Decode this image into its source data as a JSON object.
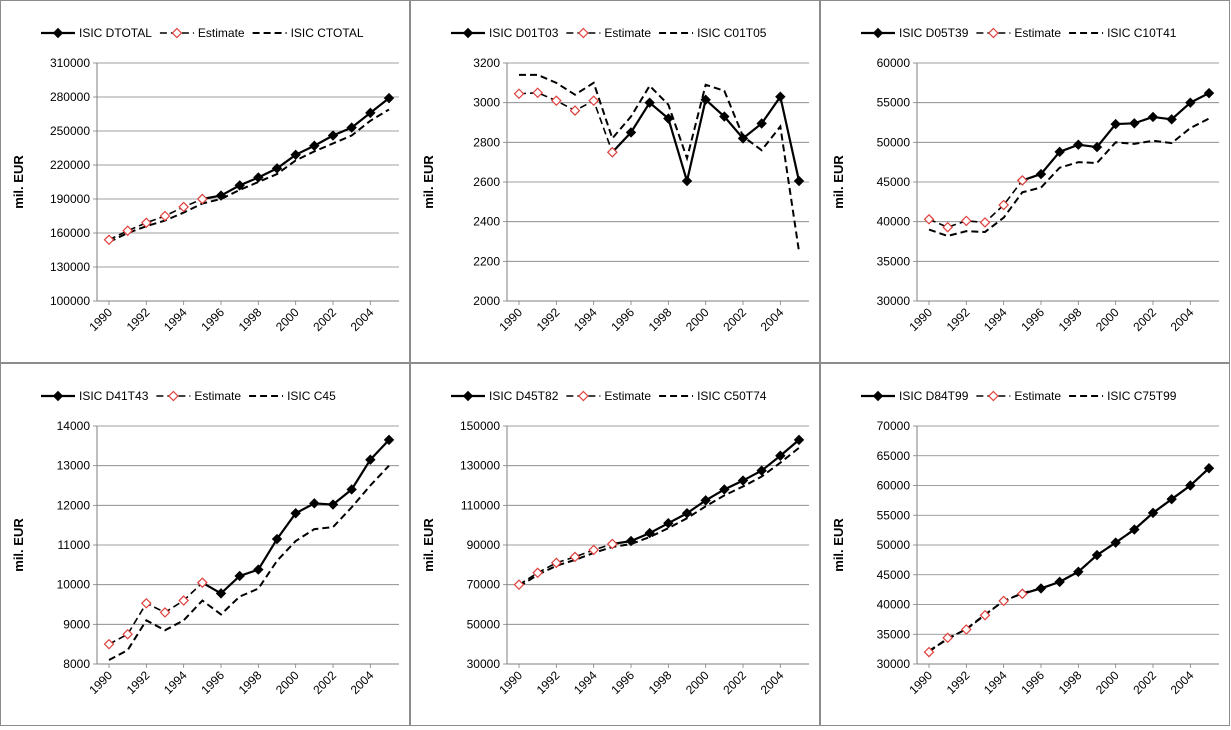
{
  "ylabel": "mil. EUR",
  "estimate_label": "Estimate",
  "colors": {
    "main": "#000000",
    "estimate_marker": "#e0403c",
    "grid": "#7f7f7f"
  },
  "chart_data": [
    {
      "type": "line",
      "title": "",
      "xlabel": "",
      "ylabel": "mil. EUR",
      "ylim": [
        100000,
        310000
      ],
      "yticks": [
        100000,
        130000,
        160000,
        190000,
        220000,
        250000,
        280000,
        310000
      ],
      "x": [
        1990,
        1991,
        1992,
        1993,
        1994,
        1995,
        1996,
        1997,
        1998,
        1999,
        2000,
        2001,
        2002,
        2003,
        2004,
        2005
      ],
      "xticks": [
        "1990",
        "1992",
        "1994",
        "1996",
        "1998",
        "2000",
        "2002",
        "2004"
      ],
      "series": [
        {
          "name": "ISIC DTOTAL",
          "style": "solid-diamond",
          "values": [
            null,
            null,
            null,
            null,
            null,
            190000,
            193000,
            202000,
            209000,
            217000,
            229000,
            237000,
            246000,
            253000,
            266000,
            279000
          ]
        },
        {
          "name": "Estimate",
          "style": "open-diamond-dashed",
          "values": [
            154000,
            162000,
            169000,
            175000,
            183000,
            190000,
            null,
            null,
            null,
            null,
            null,
            null,
            null,
            null,
            null,
            null
          ]
        },
        {
          "name": "ISIC CTOTAL",
          "style": "dashed",
          "values": [
            152000,
            160000,
            166000,
            171000,
            178000,
            186000,
            190000,
            198000,
            205000,
            212000,
            224000,
            232000,
            239000,
            246000,
            259000,
            269000
          ]
        }
      ]
    },
    {
      "type": "line",
      "title": "",
      "xlabel": "",
      "ylabel": "mil. EUR",
      "ylim": [
        2000,
        3200
      ],
      "yticks": [
        2000,
        2200,
        2400,
        2600,
        2800,
        3000,
        3200
      ],
      "x": [
        1990,
        1991,
        1992,
        1993,
        1994,
        1995,
        1996,
        1997,
        1998,
        1999,
        2000,
        2001,
        2002,
        2003,
        2004,
        2005
      ],
      "xticks": [
        "1990",
        "1992",
        "1994",
        "1996",
        "1998",
        "2000",
        "2002",
        "2004"
      ],
      "series": [
        {
          "name": "ISIC D01T03",
          "style": "solid-diamond",
          "values": [
            null,
            null,
            null,
            null,
            null,
            2750,
            2850,
            3000,
            2920,
            2605,
            3015,
            2930,
            2820,
            2895,
            3030,
            2605
          ]
        },
        {
          "name": "Estimate",
          "style": "open-diamond-dashed",
          "values": [
            3045,
            3050,
            3010,
            2960,
            3010,
            2750,
            null,
            null,
            null,
            null,
            null,
            null,
            null,
            null,
            null,
            null
          ]
        },
        {
          "name": "ISIC C01T05",
          "style": "dashed",
          "values": [
            3140,
            3140,
            3100,
            3040,
            3100,
            2820,
            2930,
            3085,
            2990,
            2720,
            3090,
            3060,
            2830,
            2760,
            2880,
            2250
          ]
        }
      ]
    },
    {
      "type": "line",
      "title": "",
      "xlabel": "",
      "ylabel": "mil. EUR",
      "ylim": [
        30000,
        60000
      ],
      "yticks": [
        30000,
        35000,
        40000,
        45000,
        50000,
        55000,
        60000
      ],
      "x": [
        1990,
        1991,
        1992,
        1993,
        1994,
        1995,
        1996,
        1997,
        1998,
        1999,
        2000,
        2001,
        2002,
        2003,
        2004,
        2005
      ],
      "xticks": [
        "1990",
        "1992",
        "1994",
        "1996",
        "1998",
        "2000",
        "2002",
        "2004"
      ],
      "series": [
        {
          "name": "ISIC D05T39",
          "style": "solid-diamond",
          "values": [
            null,
            null,
            null,
            null,
            null,
            45200,
            46000,
            48800,
            49700,
            49400,
            52300,
            52400,
            53200,
            52900,
            55000,
            56200
          ]
        },
        {
          "name": "Estimate",
          "style": "open-diamond-dashed",
          "values": [
            40300,
            39300,
            40100,
            39900,
            42100,
            45200,
            null,
            null,
            null,
            null,
            null,
            null,
            null,
            null,
            null,
            null
          ]
        },
        {
          "name": "ISIC C10T41",
          "style": "dashed",
          "values": [
            39000,
            38200,
            38800,
            38700,
            40500,
            43700,
            44300,
            46800,
            47500,
            47400,
            50000,
            49800,
            50200,
            49900,
            51800,
            53000
          ]
        }
      ]
    },
    {
      "type": "line",
      "title": "",
      "xlabel": "",
      "ylabel": "mil. EUR",
      "ylim": [
        8000,
        14000
      ],
      "yticks": [
        8000,
        9000,
        10000,
        11000,
        12000,
        13000,
        14000
      ],
      "x": [
        1990,
        1991,
        1992,
        1993,
        1994,
        1995,
        1996,
        1997,
        1998,
        1999,
        2000,
        2001,
        2002,
        2003,
        2004,
        2005
      ],
      "xticks": [
        "1990",
        "1992",
        "1994",
        "1996",
        "1998",
        "2000",
        "2002",
        "2004"
      ],
      "series": [
        {
          "name": "ISIC D41T43",
          "style": "solid-diamond",
          "values": [
            null,
            null,
            null,
            null,
            null,
            10050,
            9780,
            10220,
            10380,
            11150,
            11800,
            12050,
            12020,
            12400,
            13150,
            13650
          ]
        },
        {
          "name": "Estimate",
          "style": "open-diamond-dashed",
          "values": [
            8500,
            8750,
            9530,
            9300,
            9600,
            10050,
            null,
            null,
            null,
            null,
            null,
            null,
            null,
            null,
            null,
            null
          ]
        },
        {
          "name": "ISIC C45",
          "style": "dashed",
          "values": [
            8100,
            8350,
            9100,
            8850,
            9100,
            9600,
            9250,
            9700,
            9900,
            10600,
            11100,
            11400,
            11450,
            11950,
            12500,
            13000
          ]
        }
      ]
    },
    {
      "type": "line",
      "title": "",
      "xlabel": "",
      "ylabel": "mil. EUR",
      "ylim": [
        30000,
        150000
      ],
      "yticks": [
        30000,
        50000,
        70000,
        90000,
        110000,
        130000,
        150000
      ],
      "x": [
        1990,
        1991,
        1992,
        1993,
        1994,
        1995,
        1996,
        1997,
        1998,
        1999,
        2000,
        2001,
        2002,
        2003,
        2004,
        2005
      ],
      "xticks": [
        "1990",
        "1992",
        "1994",
        "1996",
        "1998",
        "2000",
        "2002",
        "2004"
      ],
      "series": [
        {
          "name": "ISIC D45T82",
          "style": "solid-diamond",
          "values": [
            null,
            null,
            null,
            null,
            null,
            90500,
            92000,
            96000,
            101000,
            106000,
            112500,
            118000,
            122500,
            127500,
            135000,
            143000
          ]
        },
        {
          "name": "Estimate",
          "style": "open-diamond-dashed",
          "values": [
            70000,
            76000,
            81000,
            84000,
            87500,
            90500,
            null,
            null,
            null,
            null,
            null,
            null,
            null,
            null,
            null,
            null
          ]
        },
        {
          "name": "ISIC C50T74",
          "style": "dashed",
          "values": [
            69000,
            75000,
            79500,
            82500,
            86000,
            89000,
            90500,
            94000,
            98500,
            103500,
            109500,
            115000,
            119500,
            124500,
            131500,
            139000
          ]
        }
      ]
    },
    {
      "type": "line",
      "title": "",
      "xlabel": "",
      "ylabel": "mil. EUR",
      "ylim": [
        30000,
        70000
      ],
      "yticks": [
        30000,
        35000,
        40000,
        45000,
        50000,
        55000,
        60000,
        65000,
        70000
      ],
      "x": [
        1990,
        1991,
        1992,
        1993,
        1994,
        1995,
        1996,
        1997,
        1998,
        1999,
        2000,
        2001,
        2002,
        2003,
        2004,
        2005
      ],
      "xticks": [
        "1990",
        "1992",
        "1994",
        "1996",
        "1998",
        "2000",
        "2002",
        "2004"
      ],
      "series": [
        {
          "name": "ISIC D84T99",
          "style": "solid-diamond",
          "values": [
            null,
            null,
            null,
            null,
            null,
            41800,
            42700,
            43800,
            45500,
            48300,
            50400,
            52600,
            55400,
            57700,
            60000,
            62900
          ]
        },
        {
          "name": "Estimate",
          "style": "open-diamond-dashed",
          "values": [
            32000,
            34400,
            35800,
            38200,
            40600,
            41800,
            null,
            null,
            null,
            null,
            null,
            null,
            null,
            null,
            null,
            null
          ]
        },
        {
          "name": "ISIC C75T99",
          "style": "dashed",
          "values": [
            32200,
            34200,
            35900,
            38300,
            40600,
            41900,
            42700,
            43800,
            45500,
            48300,
            50400,
            52600,
            55400,
            57700,
            60000,
            62900
          ]
        }
      ]
    }
  ]
}
